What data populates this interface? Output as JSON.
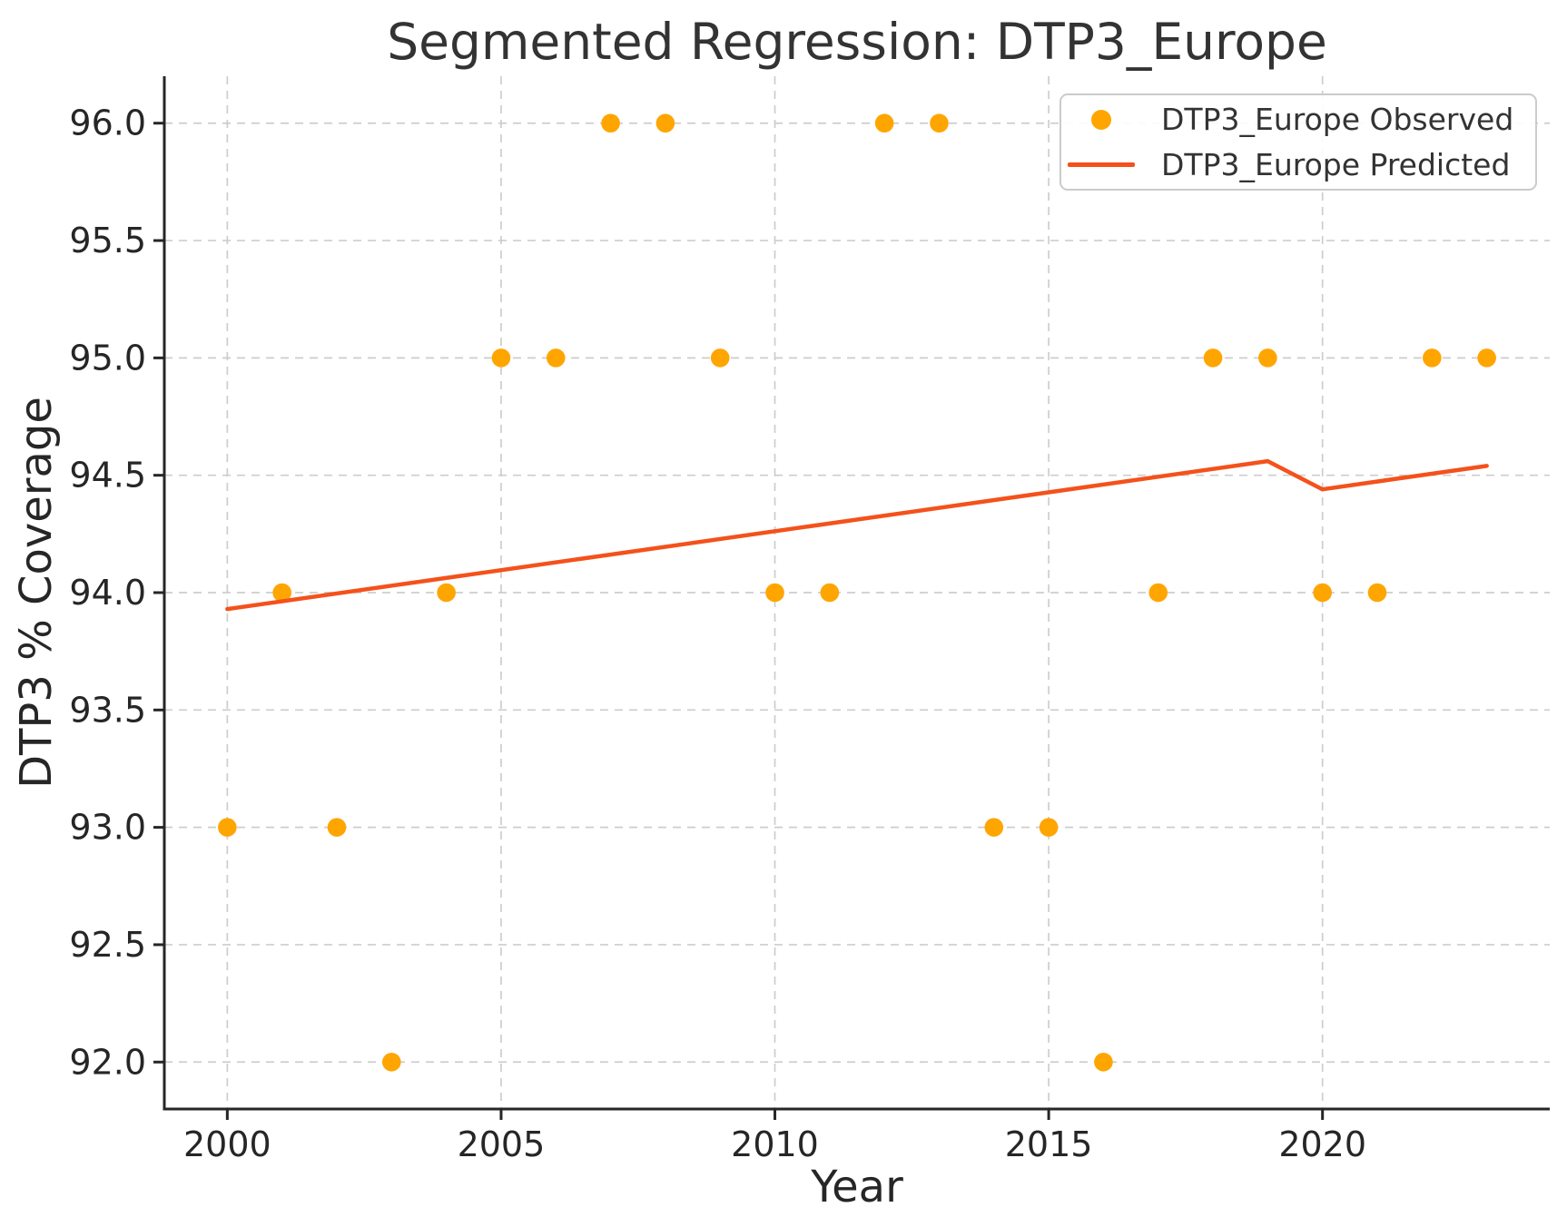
{
  "title": "Segmented Regression: DTP3_Europe",
  "colors": {
    "observed": "#FFA500",
    "predicted": "#F4511C",
    "grid": "#CDCDCD",
    "axis": "#262626",
    "text": "#333333"
  },
  "chart_data": {
    "type": "scatter",
    "title": "Segmented Regression: DTP3_Europe",
    "xlabel": "Year",
    "ylabel": "DTP3 % Coverage",
    "xlim": [
      1998.85,
      2024.15
    ],
    "ylim": [
      91.8,
      96.2
    ],
    "xticks": [
      2000,
      2005,
      2010,
      2015,
      2020
    ],
    "xtick_labels": [
      "2000",
      "2005",
      "2010",
      "2015",
      "2020"
    ],
    "yticks": [
      92.0,
      92.5,
      93.0,
      93.5,
      94.0,
      94.5,
      95.0,
      95.5,
      96.0
    ],
    "ytick_labels": [
      "92.0",
      "92.5",
      "93.0",
      "93.5",
      "94.0",
      "94.5",
      "95.0",
      "95.5",
      "96.0"
    ],
    "grid": true,
    "legend_position": "upper right",
    "series": [
      {
        "name": "DTP3_Europe Observed",
        "type": "scatter",
        "color": "#FFA500",
        "x": [
          2000,
          2001,
          2002,
          2003,
          2004,
          2005,
          2006,
          2007,
          2008,
          2009,
          2010,
          2011,
          2012,
          2013,
          2014,
          2015,
          2016,
          2017,
          2018,
          2019,
          2020,
          2021,
          2022,
          2023
        ],
        "y": [
          93,
          94,
          93,
          92,
          94,
          95,
          95,
          96,
          96,
          95,
          94,
          94,
          96,
          96,
          93,
          93,
          92,
          94,
          95,
          95,
          94,
          94,
          95,
          95
        ]
      },
      {
        "name": "DTP3_Europe Predicted",
        "type": "line",
        "color": "#F4511C",
        "x": [
          2000,
          2019,
          2020,
          2023
        ],
        "y": [
          93.93,
          94.56,
          94.44,
          94.54
        ]
      }
    ]
  }
}
